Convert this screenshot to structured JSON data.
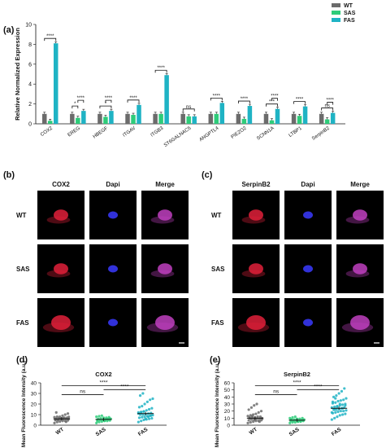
{
  "panels": {
    "a": "(a)",
    "b": "(b)",
    "c": "(c)",
    "d": "(d)",
    "e": "(e)"
  },
  "colors": {
    "WT": "#6b6b6b",
    "SAS": "#2ecc7a",
    "FAS": "#1fb3c4",
    "red_stain": "#e0203a",
    "blue_stain": "#3a3aff"
  },
  "chart_data": [
    {
      "type": "bar",
      "panel": "a",
      "categories": [
        "COX2",
        "EREG",
        "HBEGF",
        "ITGAV",
        "ITGB3",
        "ST6GALNAC5",
        "ANGPTL4",
        "PIEZO2",
        "SCNN1A",
        "LTBP1",
        "SerpinB2"
      ],
      "series": [
        {
          "name": "WT",
          "values": [
            1.0,
            1.0,
            1.0,
            1.0,
            1.0,
            1.0,
            1.0,
            1.0,
            1.0,
            1.0,
            1.0
          ]
        },
        {
          "name": "SAS",
          "values": [
            0.3,
            0.6,
            0.7,
            0.9,
            1.0,
            0.75,
            1.0,
            0.5,
            0.35,
            0.8,
            0.45
          ]
        },
        {
          "name": "FAS",
          "values": [
            8.1,
            1.3,
            1.3,
            1.9,
            4.9,
            0.75,
            2.1,
            1.8,
            1.5,
            1.75,
            1.1
          ]
        }
      ],
      "ylabel": "Relative Normalized Expression",
      "ylim": [
        0,
        10
      ],
      "yticks": [
        0,
        2,
        4,
        6,
        8,
        10
      ],
      "legend": "top-right",
      "significance": [
        {
          "cat": 0,
          "pairs": [
            [
              "WT",
              "FAS",
              "****"
            ]
          ]
        },
        {
          "cat": 1,
          "pairs": [
            [
              "WT",
              "SAS",
              "*"
            ],
            [
              "SAS",
              "FAS",
              "****"
            ]
          ]
        },
        {
          "cat": 2,
          "pairs": [
            [
              "WT",
              "FAS",
              "*"
            ],
            [
              "SAS",
              "FAS",
              "****"
            ]
          ]
        },
        {
          "cat": 3,
          "pairs": [
            [
              "WT",
              "FAS",
              "****"
            ]
          ]
        },
        {
          "cat": 4,
          "pairs": [
            [
              "WT",
              "FAS",
              "****"
            ]
          ]
        },
        {
          "cat": 5,
          "pairs": [
            [
              "WT",
              "FAS",
              "ns"
            ]
          ]
        },
        {
          "cat": 6,
          "pairs": [
            [
              "WT",
              "FAS",
              "****"
            ]
          ]
        },
        {
          "cat": 7,
          "pairs": [
            [
              "WT",
              "FAS",
              "****"
            ]
          ]
        },
        {
          "cat": 8,
          "pairs": [
            [
              "WT",
              "FAS",
              "***"
            ],
            [
              "SAS",
              "FAS",
              "****"
            ]
          ]
        },
        {
          "cat": 9,
          "pairs": [
            [
              "WT",
              "FAS",
              "****"
            ]
          ]
        },
        {
          "cat": 10,
          "pairs": [
            [
              "WT",
              "FAS",
              "ns"
            ],
            [
              "SAS",
              "FAS",
              "****"
            ]
          ]
        }
      ]
    },
    {
      "type": "scatter",
      "panel": "d",
      "title": "COX2",
      "categories": [
        "WT",
        "SAS",
        "FAS"
      ],
      "means": [
        6,
        5.5,
        11
      ],
      "ylabel": "Mean Fluorescence Intensity (a.u.)",
      "ylim": [
        0,
        40
      ],
      "yticks": [
        0,
        10,
        20,
        30,
        40
      ],
      "points": {
        "WT": [
          2,
          3,
          3.5,
          4,
          4,
          4.5,
          5,
          5,
          5.5,
          5.5,
          6,
          6,
          6,
          6.5,
          6.5,
          7,
          7,
          7.5,
          8,
          8,
          9,
          10,
          11,
          4.8,
          5.2,
          6.2,
          6.8,
          3.2,
          7.8,
          12
        ],
        "SAS": [
          2,
          3,
          3.5,
          4,
          4,
          4.5,
          5,
          5,
          5,
          5.5,
          5.5,
          6,
          6,
          6.5,
          7,
          7,
          7.5,
          8,
          8.5,
          9,
          4.2,
          5.8,
          6.3,
          3.8
        ],
        "FAS": [
          3,
          4,
          5,
          5.5,
          6,
          6.5,
          7,
          7.5,
          8,
          8.5,
          9,
          9.5,
          10,
          10,
          10.5,
          11,
          11.5,
          12,
          12.5,
          13,
          14,
          15,
          16,
          17,
          18,
          20,
          22,
          24,
          25,
          28,
          30,
          6,
          8,
          9,
          11,
          12,
          13
        ]
      },
      "significance": [
        [
          "WT",
          "SAS",
          "ns"
        ],
        [
          "SAS",
          "FAS",
          "****"
        ],
        [
          "WT",
          "FAS",
          "****"
        ]
      ]
    },
    {
      "type": "scatter",
      "panel": "e",
      "title": "SerpinB2",
      "categories": [
        "WT",
        "SAS",
        "FAS"
      ],
      "means": [
        10,
        7,
        24
      ],
      "ylabel": "Mean Fluorescence Intensity (a.u.)",
      "ylim": [
        0,
        60
      ],
      "yticks": [
        0,
        10,
        20,
        30,
        40,
        50,
        60
      ],
      "points": {
        "WT": [
          3,
          4,
          5,
          6,
          6,
          7,
          7,
          8,
          8,
          9,
          9,
          10,
          10,
          11,
          11,
          12,
          12,
          13,
          14,
          15,
          16,
          18,
          20,
          22,
          25,
          28,
          30,
          5,
          9,
          11,
          13,
          8
        ],
        "SAS": [
          3,
          4,
          4,
          5,
          5,
          6,
          6,
          6,
          7,
          7,
          7,
          8,
          8,
          8,
          9,
          9,
          10,
          10,
          11,
          12,
          5,
          6,
          7,
          8
        ],
        "FAS": [
          8,
          10,
          12,
          14,
          15,
          16,
          17,
          18,
          19,
          20,
          20,
          21,
          22,
          22,
          23,
          24,
          25,
          25,
          26,
          27,
          28,
          29,
          30,
          31,
          32,
          34,
          35,
          36,
          38,
          40,
          42,
          45,
          48,
          52,
          18,
          22,
          26,
          30,
          24,
          28,
          33,
          38
        ]
      },
      "significance": [
        [
          "WT",
          "SAS",
          "ns"
        ],
        [
          "SAS",
          "FAS",
          "****"
        ],
        [
          "WT",
          "FAS",
          "****"
        ]
      ]
    }
  ],
  "micrographs": {
    "b": {
      "col_headers": [
        "COX2",
        "Dapi",
        "Merge"
      ],
      "col_colors": [
        "#e0203a",
        "#3a5bd9",
        "#111111"
      ],
      "rows": [
        "WT",
        "SAS",
        "FAS"
      ]
    },
    "c": {
      "col_headers": [
        "SerpinB2",
        "Dapi",
        "Merge"
      ],
      "col_colors": [
        "#e0203a",
        "#3a5bd9",
        "#111111"
      ],
      "rows": [
        "WT",
        "SAS",
        "FAS"
      ]
    }
  }
}
